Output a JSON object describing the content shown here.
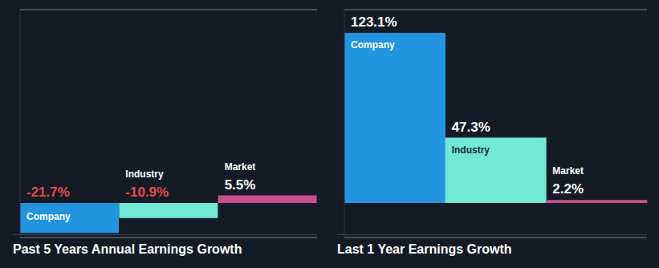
{
  "chart_data": [
    {
      "type": "bar",
      "title": "Past 5 Years Annual Earnings Growth",
      "categories": [
        "Company",
        "Industry",
        "Market"
      ],
      "values": [
        -21.7,
        -10.9,
        5.5
      ],
      "value_labels": [
        "-21.7%",
        "-10.9%",
        "5.5%"
      ],
      "colors": [
        "#2394df",
        "#71e7d6",
        "#c7518b"
      ],
      "ylim": [
        -25,
        140
      ],
      "yticks": [
        0
      ],
      "grid": true,
      "data_labels": true,
      "tick_labels": false
    },
    {
      "type": "bar",
      "title": "Last 1 Year Earnings Growth",
      "categories": [
        "Company",
        "Industry",
        "Market"
      ],
      "values": [
        123.1,
        47.3,
        2.2
      ],
      "value_labels": [
        "123.1%",
        "47.3%",
        "2.2%"
      ],
      "colors": [
        "#2394df",
        "#71e7d6",
        "#c7518b"
      ],
      "ylim": [
        -25,
        140
      ],
      "yticks": [
        0
      ],
      "grid": true,
      "data_labels": true,
      "tick_labels": false
    }
  ]
}
